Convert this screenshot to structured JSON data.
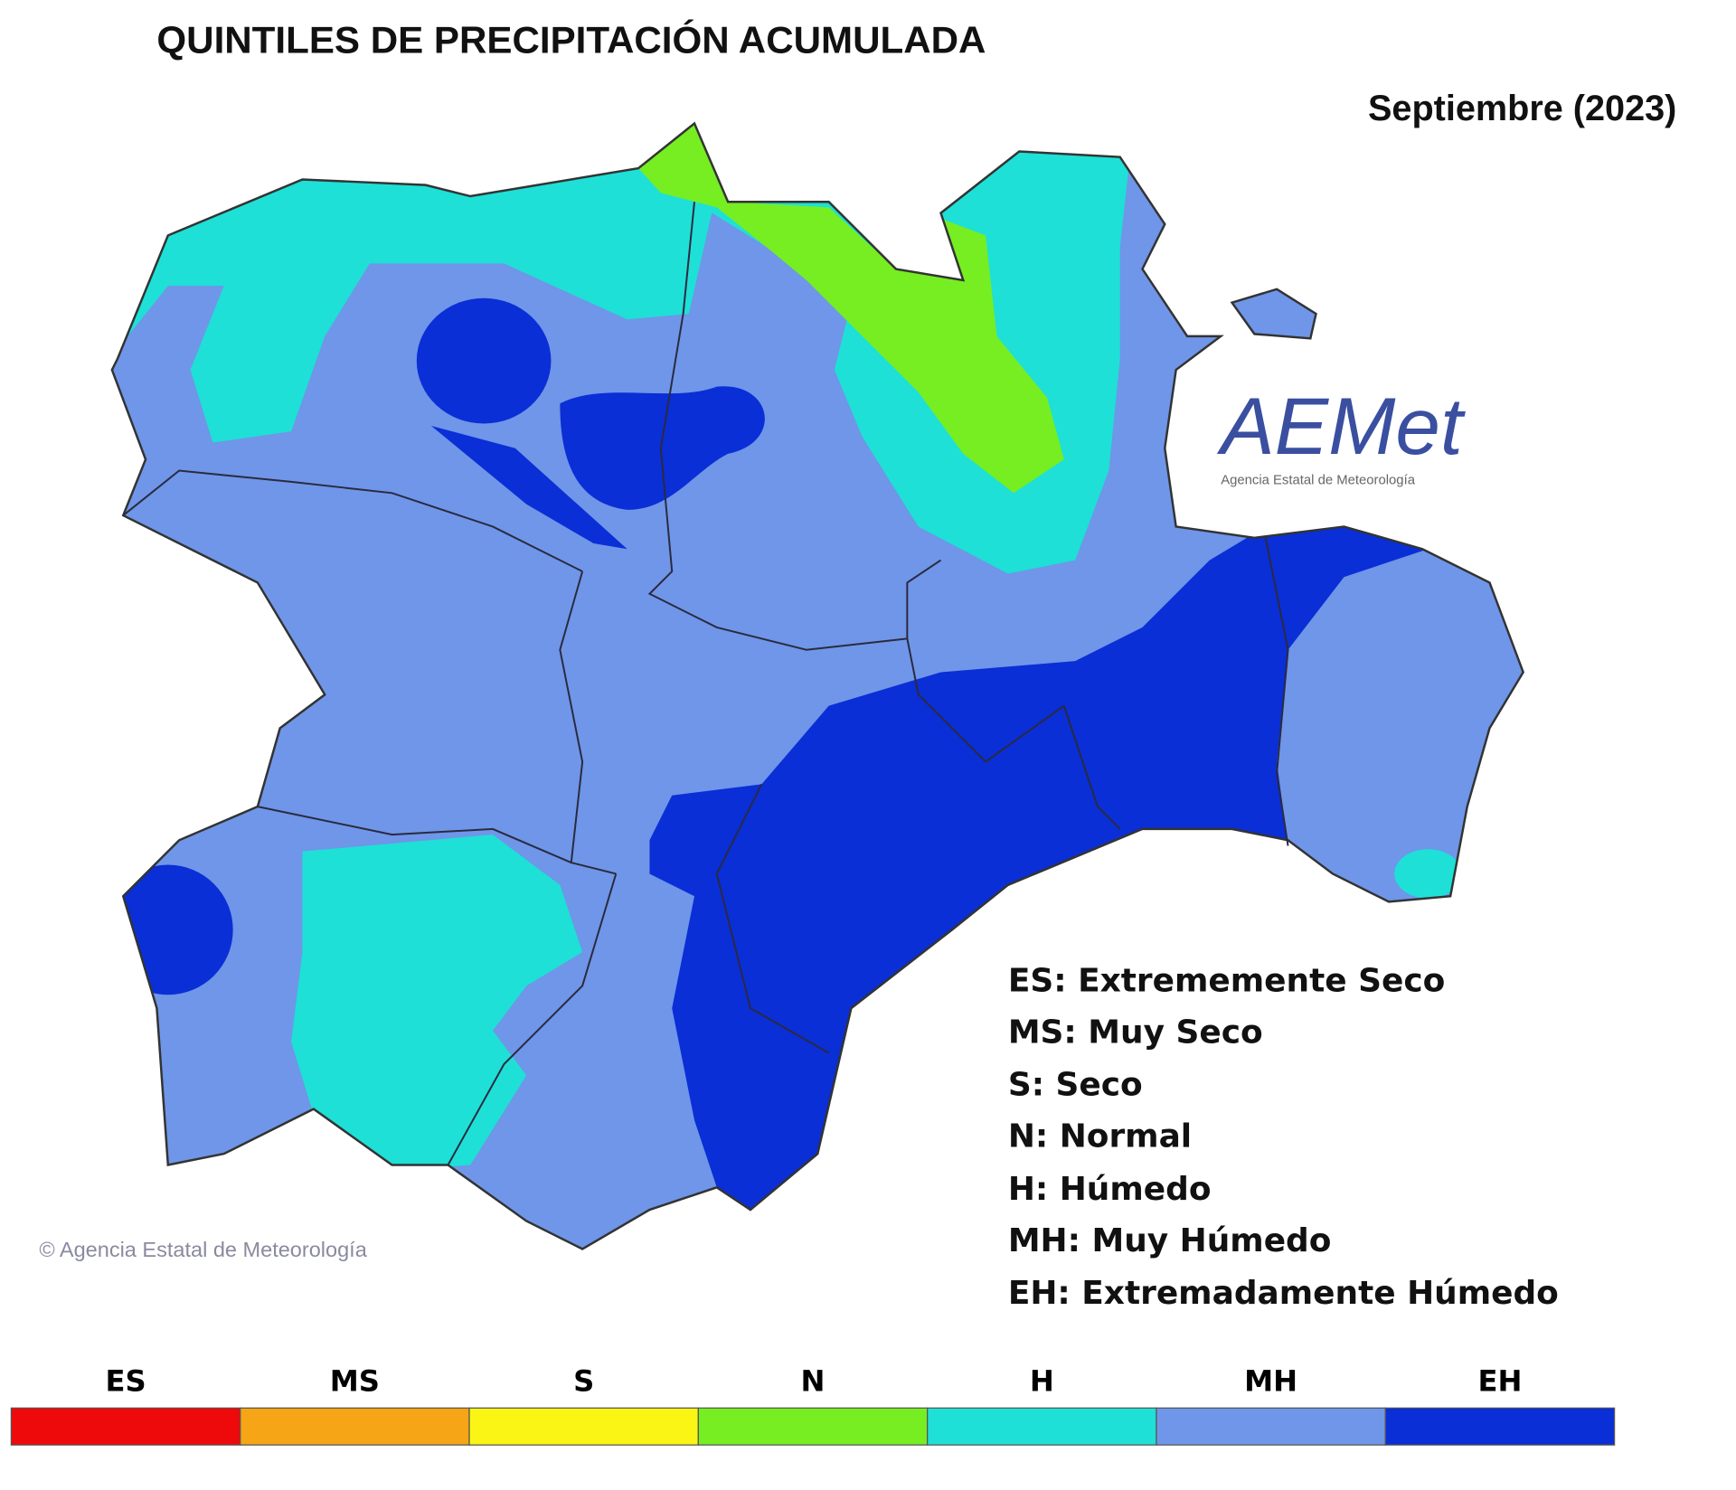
{
  "title": "QUINTILES DE PRECIPITACIÓN ACUMULADA",
  "period": "Septiembre (2023)",
  "logo": {
    "text": "AEMet",
    "subtitle": "Agencia Estatal de Meteorología"
  },
  "copyright": "© Agencia Estatal de Meteorología",
  "legend": [
    "ES: Extrememente Seco",
    "MS: Muy Seco",
    "S: Seco",
    "N: Normal",
    "H: Húmedo",
    "MH: Muy Húmedo",
    "EH: Extremadamente Húmedo"
  ],
  "colorbar": [
    {
      "code": "ES",
      "color": "#ee0a0a"
    },
    {
      "code": "MS",
      "color": "#f5a515"
    },
    {
      "code": "S",
      "color": "#fbf515"
    },
    {
      "code": "N",
      "color": "#76ee22"
    },
    {
      "code": "H",
      "color": "#1ee0d6"
    },
    {
      "code": "MH",
      "color": "#6f96e8"
    },
    {
      "code": "EH",
      "color": "#0a2fd6"
    }
  ]
}
